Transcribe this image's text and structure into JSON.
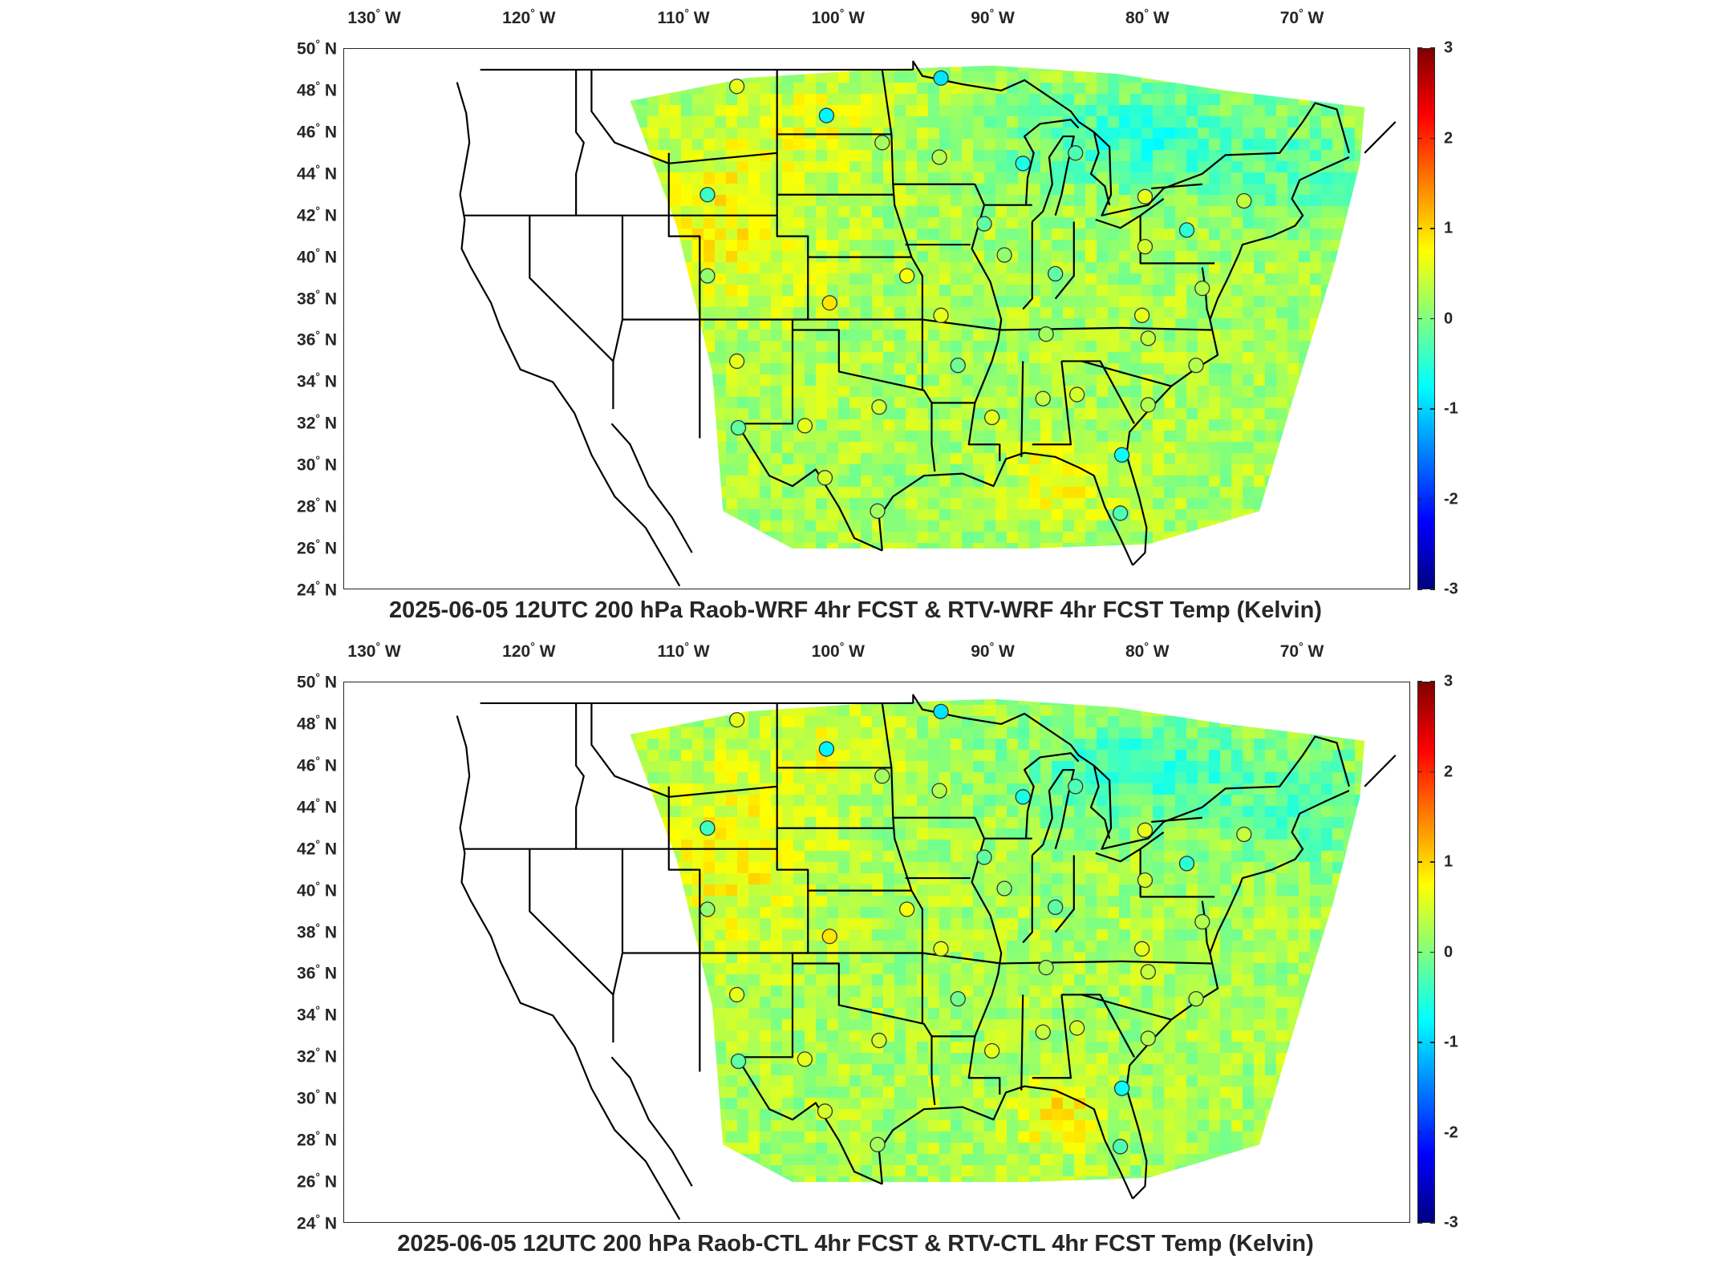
{
  "lon_ticks": [
    {
      "deg": "130",
      "dir": "W"
    },
    {
      "deg": "120",
      "dir": "W"
    },
    {
      "deg": "110",
      "dir": "W"
    },
    {
      "deg": "100",
      "dir": "W"
    },
    {
      "deg": "90",
      "dir": "W"
    },
    {
      "deg": "80",
      "dir": "W"
    },
    {
      "deg": "70",
      "dir": "W"
    }
  ],
  "lat_ticks": [
    {
      "deg": "50",
      "dir": "N"
    },
    {
      "deg": "48",
      "dir": "N"
    },
    {
      "deg": "46",
      "dir": "N"
    },
    {
      "deg": "44",
      "dir": "N"
    },
    {
      "deg": "42",
      "dir": "N"
    },
    {
      "deg": "40",
      "dir": "N"
    },
    {
      "deg": "38",
      "dir": "N"
    },
    {
      "deg": "36",
      "dir": "N"
    },
    {
      "deg": "34",
      "dir": "N"
    },
    {
      "deg": "32",
      "dir": "N"
    },
    {
      "deg": "30",
      "dir": "N"
    },
    {
      "deg": "28",
      "dir": "N"
    },
    {
      "deg": "26",
      "dir": "N"
    },
    {
      "deg": "24",
      "dir": "N"
    }
  ],
  "colorbar": {
    "ticks": [
      "3",
      "2",
      "1",
      "0",
      "-1",
      "-2",
      "-3"
    ],
    "min": -3,
    "max": 3,
    "colormap": [
      "#800000",
      "#ff0000",
      "#ff8000",
      "#ffff00",
      "#80ff80",
      "#00ffff",
      "#0080ff",
      "#0000ff",
      "#000080"
    ]
  },
  "panels": [
    {
      "title": "2025-06-05 12UTC 200 hPa Raob-WRF 4hr FCST & RTV-WRF 4hr FCST Temp (Kelvin)"
    },
    {
      "title": "2025-06-05 12UTC 200 hPa Raob-CTL 4hr FCST & RTV-CTL 4hr FCST Temp (Kelvin)"
    }
  ],
  "stations": [
    {
      "lon": -106.6,
      "lat": 48.2,
      "v": 0.6
    },
    {
      "lon": -100.8,
      "lat": 46.8,
      "v": -0.8
    },
    {
      "lon": -93.4,
      "lat": 48.6,
      "v": -0.9
    },
    {
      "lon": -97.2,
      "lat": 45.5,
      "v": 0.2
    },
    {
      "lon": -93.5,
      "lat": 44.8,
      "v": 0.3
    },
    {
      "lon": -88.1,
      "lat": 44.5,
      "v": -0.6
    },
    {
      "lon": -84.7,
      "lat": 45.0,
      "v": -0.3
    },
    {
      "lon": -108.5,
      "lat": 43.0,
      "v": -0.4
    },
    {
      "lon": -90.6,
      "lat": 41.6,
      "v": -0.2
    },
    {
      "lon": -73.8,
      "lat": 42.7,
      "v": 0.4
    },
    {
      "lon": -80.2,
      "lat": 42.9,
      "v": 0.6
    },
    {
      "lon": -89.3,
      "lat": 40.1,
      "v": 0.1
    },
    {
      "lon": -86.0,
      "lat": 39.2,
      "v": -0.2
    },
    {
      "lon": -80.2,
      "lat": 40.5,
      "v": 0.5
    },
    {
      "lon": -108.5,
      "lat": 39.1,
      "v": 0.1
    },
    {
      "lon": -95.6,
      "lat": 39.1,
      "v": 0.7
    },
    {
      "lon": -100.6,
      "lat": 37.8,
      "v": 0.9
    },
    {
      "lon": -93.4,
      "lat": 37.2,
      "v": 0.6
    },
    {
      "lon": -80.4,
      "lat": 37.2,
      "v": 0.6
    },
    {
      "lon": -86.6,
      "lat": 36.3,
      "v": 0.2
    },
    {
      "lon": -80.0,
      "lat": 36.1,
      "v": 0.4
    },
    {
      "lon": -106.6,
      "lat": 35.0,
      "v": 0.6
    },
    {
      "lon": -92.3,
      "lat": 34.8,
      "v": -0.1
    },
    {
      "lon": -76.9,
      "lat": 34.8,
      "v": 0.3
    },
    {
      "lon": -97.4,
      "lat": 32.8,
      "v": 0.5
    },
    {
      "lon": -90.1,
      "lat": 32.3,
      "v": 0.6
    },
    {
      "lon": -86.8,
      "lat": 33.2,
      "v": 0.4
    },
    {
      "lon": -84.6,
      "lat": 33.4,
      "v": 0.5
    },
    {
      "lon": -80.0,
      "lat": 32.9,
      "v": 0.3
    },
    {
      "lon": -106.5,
      "lat": 31.8,
      "v": -0.2
    },
    {
      "lon": -102.2,
      "lat": 31.9,
      "v": 0.6
    },
    {
      "lon": -100.9,
      "lat": 29.4,
      "v": 0.5
    },
    {
      "lon": -81.7,
      "lat": 30.5,
      "v": -0.7
    },
    {
      "lon": -97.5,
      "lat": 27.8,
      "v": 0.2
    },
    {
      "lon": -81.8,
      "lat": 27.7,
      "v": -0.3
    },
    {
      "lon": -77.5,
      "lat": 41.3,
      "v": -0.5
    },
    {
      "lon": -76.5,
      "lat": 38.5,
      "v": 0.3
    }
  ]
}
